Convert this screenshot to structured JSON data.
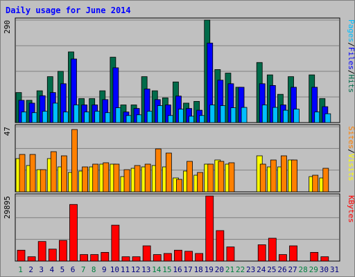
{
  "chart_data": {
    "type": "bar",
    "title": "Daily usage for June 2014",
    "categories": [
      "1",
      "2",
      "3",
      "4",
      "5",
      "6",
      "7",
      "8",
      "9",
      "10",
      "11",
      "12",
      "13",
      "14",
      "15",
      "16",
      "17",
      "18",
      "19",
      "20",
      "21",
      "22",
      "23",
      "24",
      "25",
      "26",
      "27",
      "28",
      "29",
      "30",
      "31"
    ],
    "weekend_days": [
      "1",
      "7",
      "8",
      "14",
      "15",
      "21",
      "22",
      "28",
      "29"
    ],
    "panels": [
      {
        "id": "hits-panel",
        "max_label": "290",
        "ylim": [
          0,
          290
        ],
        "series": [
          {
            "name": "Hits",
            "color": "#006b4a",
            "values": [
              85,
              63,
              90,
              130,
              145,
              200,
              68,
              68,
              90,
              185,
              50,
              50,
              130,
              90,
              70,
              115,
              55,
              60,
              290,
              150,
              140,
              100,
              null,
              170,
              135,
              80,
              130,
              null,
              135,
              68,
              null
            ]
          },
          {
            "name": "Files",
            "color": "#0000ff",
            "values": [
              63,
              55,
              76,
              85,
              110,
              180,
              50,
              50,
              65,
              155,
              30,
              40,
              95,
              65,
              50,
              75,
              40,
              35,
              225,
              120,
              110,
              100,
              null,
              110,
              105,
              50,
              100,
              null,
              100,
              45,
              null
            ]
          },
          {
            "name": "Pages",
            "color": "#00bfff",
            "values": [
              30,
              28,
              32,
              55,
              30,
              50,
              30,
              32,
              28,
              42,
              20,
              22,
              32,
              48,
              20,
              38,
              18,
              20,
              50,
              48,
              42,
              43,
              null,
              50,
              43,
              35,
              38,
              null,
              30,
              25,
              null
            ]
          }
        ]
      },
      {
        "id": "visits-panel",
        "max_label": "47",
        "ylim": [
          0,
          47
        ],
        "series": [
          {
            "name": "Visits",
            "color": "#ffff00",
            "values": [
              24,
              19,
              16,
              24,
              18,
              14,
              15,
              18,
              20,
              20,
              11,
              17,
              18,
              19,
              18,
              10,
              15,
              12,
              20,
              23,
              20,
              null,
              null,
              26,
              18,
              18,
              23,
              null,
              11,
              10,
              null
            ]
          },
          {
            "name": "Sites",
            "color": "#ff8000",
            "values": [
              27,
              27,
              16,
              29,
              26,
              45,
              18,
              20,
              21,
              20,
              16,
              19,
              20,
              31,
              28,
              9,
              22,
              14,
              20,
              22,
              21,
              null,
              null,
              20,
              23,
              26,
              23,
              null,
              12,
              17,
              null
            ]
          }
        ]
      },
      {
        "id": "kbytes-panel",
        "max_label": "29895",
        "ylim": [
          0,
          29895
        ],
        "series": [
          {
            "name": "KBytes",
            "color": "#ff0000",
            "values": [
              5000,
              2000,
              9000,
              5500,
              9500,
              26000,
              3000,
              3000,
              4000,
              16500,
              2000,
              2000,
              7000,
              3000,
              3500,
              5000,
              4500,
              3500,
              29895,
              14000,
              6500,
              null,
              null,
              7500,
              10500,
              3000,
              7000,
              null,
              4000,
              2000,
              null
            ]
          }
        ]
      }
    ],
    "right_labels": {
      "top": [
        {
          "text": "Pages",
          "color": "#00bfff"
        },
        {
          "text": "/",
          "color": "#000000"
        },
        {
          "text": "Files",
          "color": "#0000ff"
        },
        {
          "text": "/",
          "color": "#000000"
        },
        {
          "text": "Hits",
          "color": "#006b4a"
        }
      ],
      "middle": [
        {
          "text": "Sites",
          "color": "#ff8000"
        },
        {
          "text": "/",
          "color": "#000000"
        },
        {
          "text": "Visits",
          "color": "#ffff00"
        }
      ],
      "bottom": [
        {
          "text": "KBytes",
          "color": "#ff0000"
        }
      ]
    },
    "colors": {
      "background": "#c0c0c0",
      "title": "#0000ff",
      "grid": "#808080",
      "weekday_label": "#000080",
      "weekend_label": "#008040"
    }
  }
}
